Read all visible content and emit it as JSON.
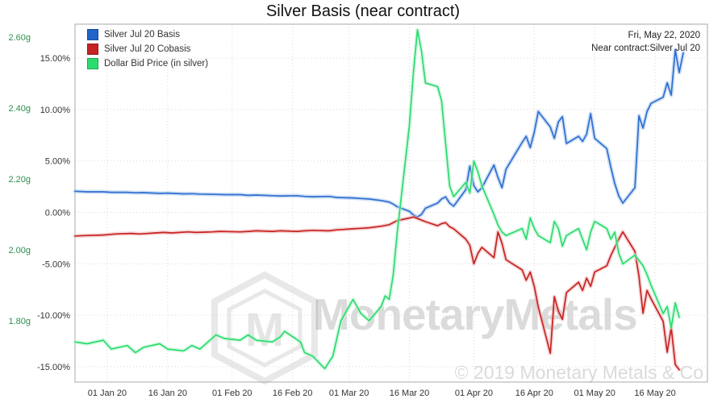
{
  "title": "Silver Basis (near contract)",
  "header": {
    "date_label": "Fri, May 22, 2020",
    "contract_label": "Near contract:Silver Jul 20"
  },
  "legend": [
    {
      "label": "Silver Jul 20 Basis",
      "color": "#2163c8"
    },
    {
      "label": "Silver Jul 20 Cobasis",
      "color": "#c62323"
    },
    {
      "label": "Dollar Bid Price (in silver)",
      "color": "#2bdc6e"
    }
  ],
  "watermark": {
    "brand": "MonetaryMetals",
    "logo_letter": "M",
    "copyright": "© 2019 Monetary Metals & Co"
  },
  "chart_data": {
    "type": "line",
    "title": "Silver Basis (near contract)",
    "x_domain": [
      "2019-12-24",
      "2020-05-29"
    ],
    "x_ticks": [
      {
        "date": "2020-01-01",
        "label": "01 Jan 20"
      },
      {
        "date": "2020-01-16",
        "label": "16 Jan 20"
      },
      {
        "date": "2020-02-01",
        "label": "01 Feb 20"
      },
      {
        "date": "2020-02-16",
        "label": "16 Feb 20"
      },
      {
        "date": "2020-03-01",
        "label": "01 Mar 20"
      },
      {
        "date": "2020-03-16",
        "label": "16 Mar 20"
      },
      {
        "date": "2020-04-01",
        "label": "01 Apr 20"
      },
      {
        "date": "2020-04-16",
        "label": "16 Apr 20"
      },
      {
        "date": "2020-05-01",
        "label": "01 May 20"
      },
      {
        "date": "2020-05-16",
        "label": "16 May 20"
      }
    ],
    "axes": {
      "percent": {
        "ticks": [
          15,
          10,
          5,
          0,
          -5,
          -10,
          -15
        ],
        "range": [
          -16.5,
          18.3
        ],
        "unit": "%"
      },
      "grams": {
        "ticks": [
          2.6,
          2.4,
          2.2,
          2.0,
          1.8
        ],
        "range": [
          1.627,
          2.636
        ],
        "unit": "g"
      }
    },
    "grid": true,
    "legend_position": "top-left",
    "series": [
      {
        "id": "basis",
        "name": "Silver Jul 20 Basis",
        "axis": "percent",
        "color": "#2e6fd0",
        "glow": "#a9c7ef",
        "points": [
          [
            "2019-12-24",
            2.05
          ],
          [
            "2019-12-27",
            2.0
          ],
          [
            "2019-12-31",
            2.0
          ],
          [
            "2020-01-02",
            1.95
          ],
          [
            "2020-01-06",
            1.95
          ],
          [
            "2020-01-08",
            1.9
          ],
          [
            "2020-01-10",
            1.92
          ],
          [
            "2020-01-14",
            1.85
          ],
          [
            "2020-01-16",
            1.87
          ],
          [
            "2020-01-20",
            1.8
          ],
          [
            "2020-01-22",
            1.82
          ],
          [
            "2020-01-24",
            1.78
          ],
          [
            "2020-01-28",
            1.75
          ],
          [
            "2020-01-30",
            1.72
          ],
          [
            "2020-02-03",
            1.72
          ],
          [
            "2020-02-05",
            1.65
          ],
          [
            "2020-02-07",
            1.68
          ],
          [
            "2020-02-11",
            1.62
          ],
          [
            "2020-02-13",
            1.6
          ],
          [
            "2020-02-17",
            1.62
          ],
          [
            "2020-02-19",
            1.55
          ],
          [
            "2020-02-21",
            1.52
          ],
          [
            "2020-02-25",
            1.55
          ],
          [
            "2020-02-27",
            1.45
          ],
          [
            "2020-03-02",
            1.4
          ],
          [
            "2020-03-04",
            1.35
          ],
          [
            "2020-03-06",
            1.3
          ],
          [
            "2020-03-09",
            1.15
          ],
          [
            "2020-03-11",
            1.0
          ],
          [
            "2020-03-12",
            0.8
          ],
          [
            "2020-03-13",
            0.55
          ],
          [
            "2020-03-16",
            0.1
          ],
          [
            "2020-03-17",
            -0.25
          ],
          [
            "2020-03-18",
            -0.45
          ],
          [
            "2020-03-19",
            -0.2
          ],
          [
            "2020-03-20",
            0.4
          ],
          [
            "2020-03-23",
            0.9
          ],
          [
            "2020-03-24",
            1.3
          ],
          [
            "2020-03-25",
            1.5
          ],
          [
            "2020-03-26",
            0.9
          ],
          [
            "2020-03-27",
            0.6
          ],
          [
            "2020-03-30",
            2.2
          ],
          [
            "2020-03-31",
            4.5
          ],
          [
            "2020-04-01",
            2.6
          ],
          [
            "2020-04-02",
            2.0
          ],
          [
            "2020-04-03",
            2.4
          ],
          [
            "2020-04-06",
            4.6
          ],
          [
            "2020-04-07",
            3.4
          ],
          [
            "2020-04-08",
            2.4
          ],
          [
            "2020-04-09",
            4.2
          ],
          [
            "2020-04-13",
            6.8
          ],
          [
            "2020-04-14",
            7.4
          ],
          [
            "2020-04-15",
            6.3
          ],
          [
            "2020-04-16",
            7.8
          ],
          [
            "2020-04-17",
            9.8
          ],
          [
            "2020-04-20",
            8.3
          ],
          [
            "2020-04-21",
            7.2
          ],
          [
            "2020-04-22",
            8.8
          ],
          [
            "2020-04-23",
            9.3
          ],
          [
            "2020-04-24",
            6.7
          ],
          [
            "2020-04-27",
            7.4
          ],
          [
            "2020-04-28",
            6.9
          ],
          [
            "2020-04-29",
            7.6
          ],
          [
            "2020-04-30",
            9.6
          ],
          [
            "2020-05-01",
            7.2
          ],
          [
            "2020-05-04",
            6.2
          ],
          [
            "2020-05-05",
            4.4
          ],
          [
            "2020-05-06",
            2.8
          ],
          [
            "2020-05-07",
            1.6
          ],
          [
            "2020-05-08",
            0.9
          ],
          [
            "2020-05-11",
            2.4
          ],
          [
            "2020-05-12",
            9.4
          ],
          [
            "2020-05-13",
            8.2
          ],
          [
            "2020-05-14",
            9.8
          ],
          [
            "2020-05-15",
            10.6
          ],
          [
            "2020-05-18",
            11.2
          ],
          [
            "2020-05-19",
            12.6
          ],
          [
            "2020-05-20",
            11.4
          ],
          [
            "2020-05-21",
            15.8
          ],
          [
            "2020-05-22",
            13.6
          ],
          [
            "2020-05-23",
            15.5
          ]
        ]
      },
      {
        "id": "cobasis",
        "name": "Silver Jul 20 Cobasis",
        "axis": "percent",
        "color": "#c62323",
        "glow": "#f0b3b3",
        "points": [
          [
            "2019-12-24",
            -2.3
          ],
          [
            "2019-12-27",
            -2.25
          ],
          [
            "2019-12-31",
            -2.2
          ],
          [
            "2020-01-03",
            -2.1
          ],
          [
            "2020-01-07",
            -2.05
          ],
          [
            "2020-01-09",
            -2.1
          ],
          [
            "2020-01-13",
            -2.0
          ],
          [
            "2020-01-15",
            -1.95
          ],
          [
            "2020-01-17",
            -2.0
          ],
          [
            "2020-01-21",
            -1.9
          ],
          [
            "2020-01-23",
            -1.95
          ],
          [
            "2020-01-27",
            -1.9
          ],
          [
            "2020-01-29",
            -1.85
          ],
          [
            "2020-02-03",
            -1.9
          ],
          [
            "2020-02-05",
            -1.85
          ],
          [
            "2020-02-07",
            -1.8
          ],
          [
            "2020-02-11",
            -1.85
          ],
          [
            "2020-02-13",
            -1.8
          ],
          [
            "2020-02-17",
            -1.85
          ],
          [
            "2020-02-19",
            -1.8
          ],
          [
            "2020-02-21",
            -1.75
          ],
          [
            "2020-02-25",
            -1.8
          ],
          [
            "2020-02-27",
            -1.7
          ],
          [
            "2020-03-02",
            -1.6
          ],
          [
            "2020-03-04",
            -1.55
          ],
          [
            "2020-03-06",
            -1.5
          ],
          [
            "2020-03-09",
            -1.35
          ],
          [
            "2020-03-11",
            -1.2
          ],
          [
            "2020-03-12",
            -1.0
          ],
          [
            "2020-03-13",
            -0.8
          ],
          [
            "2020-03-16",
            -0.55
          ],
          [
            "2020-03-17",
            -0.45
          ],
          [
            "2020-03-18",
            -0.6
          ],
          [
            "2020-03-19",
            -0.75
          ],
          [
            "2020-03-20",
            -0.9
          ],
          [
            "2020-03-23",
            -1.3
          ],
          [
            "2020-03-24",
            -1.1
          ],
          [
            "2020-03-25",
            -1.0
          ],
          [
            "2020-03-26",
            -1.4
          ],
          [
            "2020-03-27",
            -1.6
          ],
          [
            "2020-03-30",
            -2.6
          ],
          [
            "2020-03-31",
            -3.2
          ],
          [
            "2020-04-01",
            -5.0
          ],
          [
            "2020-04-02",
            -4.0
          ],
          [
            "2020-04-03",
            -3.4
          ],
          [
            "2020-04-06",
            -4.4
          ],
          [
            "2020-04-07",
            -1.9
          ],
          [
            "2020-04-08",
            -3.0
          ],
          [
            "2020-04-09",
            -4.6
          ],
          [
            "2020-04-13",
            -5.6
          ],
          [
            "2020-04-14",
            -6.6
          ],
          [
            "2020-04-15",
            -5.8
          ],
          [
            "2020-04-16",
            -7.2
          ],
          [
            "2020-04-17",
            -9.2
          ],
          [
            "2020-04-20",
            -13.7
          ],
          [
            "2020-04-21",
            -8.2
          ],
          [
            "2020-04-22",
            -9.6
          ],
          [
            "2020-04-23",
            -10.4
          ],
          [
            "2020-04-24",
            -7.8
          ],
          [
            "2020-04-27",
            -6.8
          ],
          [
            "2020-04-28",
            -7.6
          ],
          [
            "2020-04-29",
            -6.4
          ],
          [
            "2020-04-30",
            -7.2
          ],
          [
            "2020-05-01",
            -5.8
          ],
          [
            "2020-05-04",
            -5.2
          ],
          [
            "2020-05-05",
            -4.2
          ],
          [
            "2020-05-06",
            -3.4
          ],
          [
            "2020-05-07",
            -2.6
          ],
          [
            "2020-05-08",
            -1.9
          ],
          [
            "2020-05-11",
            -3.8
          ],
          [
            "2020-05-12",
            -6.2
          ],
          [
            "2020-05-13",
            -9.8
          ],
          [
            "2020-05-14",
            -7.6
          ],
          [
            "2020-05-15",
            -8.4
          ],
          [
            "2020-05-18",
            -10.6
          ],
          [
            "2020-05-19",
            -13.6
          ],
          [
            "2020-05-20",
            -11.2
          ],
          [
            "2020-05-21",
            -14.8
          ],
          [
            "2020-05-22",
            -15.3
          ]
        ]
      },
      {
        "id": "price",
        "name": "Dollar Bid Price (in silver)",
        "axis": "grams",
        "color": "#2bdc6e",
        "glow": "#b9f2cf",
        "points": [
          [
            "2019-12-24",
            1.74
          ],
          [
            "2019-12-27",
            1.735
          ],
          [
            "2019-12-31",
            1.745
          ],
          [
            "2020-01-02",
            1.72
          ],
          [
            "2020-01-06",
            1.73
          ],
          [
            "2020-01-08",
            1.71
          ],
          [
            "2020-01-10",
            1.725
          ],
          [
            "2020-01-14",
            1.735
          ],
          [
            "2020-01-16",
            1.72
          ],
          [
            "2020-01-20",
            1.715
          ],
          [
            "2020-01-22",
            1.73
          ],
          [
            "2020-01-24",
            1.72
          ],
          [
            "2020-01-28",
            1.76
          ],
          [
            "2020-01-30",
            1.75
          ],
          [
            "2020-02-03",
            1.745
          ],
          [
            "2020-02-05",
            1.76
          ],
          [
            "2020-02-07",
            1.745
          ],
          [
            "2020-02-11",
            1.74
          ],
          [
            "2020-02-13",
            1.755
          ],
          [
            "2020-02-14",
            1.77
          ],
          [
            "2020-02-18",
            1.74
          ],
          [
            "2020-02-19",
            1.71
          ],
          [
            "2020-02-21",
            1.7
          ],
          [
            "2020-02-24",
            1.665
          ],
          [
            "2020-02-26",
            1.7
          ],
          [
            "2020-02-28",
            1.8
          ],
          [
            "2020-03-02",
            1.86
          ],
          [
            "2020-03-04",
            1.82
          ],
          [
            "2020-03-06",
            1.8
          ],
          [
            "2020-03-09",
            1.84
          ],
          [
            "2020-03-10",
            1.87
          ],
          [
            "2020-03-11",
            1.86
          ],
          [
            "2020-03-12",
            1.93
          ],
          [
            "2020-03-13",
            2.05
          ],
          [
            "2020-03-16",
            2.35
          ],
          [
            "2020-03-17",
            2.5
          ],
          [
            "2020-03-18",
            2.62
          ],
          [
            "2020-03-19",
            2.56
          ],
          [
            "2020-03-20",
            2.47
          ],
          [
            "2020-03-23",
            2.46
          ],
          [
            "2020-03-24",
            2.42
          ],
          [
            "2020-03-25",
            2.3
          ],
          [
            "2020-03-26",
            2.18
          ],
          [
            "2020-03-27",
            2.15
          ],
          [
            "2020-03-30",
            2.19
          ],
          [
            "2020-03-31",
            2.16
          ],
          [
            "2020-04-01",
            2.25
          ],
          [
            "2020-04-02",
            2.22
          ],
          [
            "2020-04-03",
            2.18
          ],
          [
            "2020-04-06",
            2.1
          ],
          [
            "2020-04-07",
            2.07
          ],
          [
            "2020-04-08",
            2.05
          ],
          [
            "2020-04-09",
            2.04
          ],
          [
            "2020-04-13",
            2.06
          ],
          [
            "2020-04-14",
            2.03
          ],
          [
            "2020-04-15",
            2.09
          ],
          [
            "2020-04-16",
            2.06
          ],
          [
            "2020-04-17",
            2.04
          ],
          [
            "2020-04-20",
            2.02
          ],
          [
            "2020-04-21",
            2.08
          ],
          [
            "2020-04-22",
            2.06
          ],
          [
            "2020-04-23",
            2.01
          ],
          [
            "2020-04-24",
            2.04
          ],
          [
            "2020-04-27",
            2.06
          ],
          [
            "2020-04-28",
            2.03
          ],
          [
            "2020-04-29",
            2.0
          ],
          [
            "2020-04-30",
            2.05
          ],
          [
            "2020-05-01",
            2.08
          ],
          [
            "2020-05-04",
            2.06
          ],
          [
            "2020-05-05",
            2.03
          ],
          [
            "2020-05-06",
            2.05
          ],
          [
            "2020-05-07",
            1.99
          ],
          [
            "2020-05-08",
            1.96
          ],
          [
            "2020-05-11",
            1.985
          ],
          [
            "2020-05-12",
            1.97
          ],
          [
            "2020-05-13",
            1.955
          ],
          [
            "2020-05-14",
            1.93
          ],
          [
            "2020-05-15",
            1.9
          ],
          [
            "2020-05-18",
            1.82
          ],
          [
            "2020-05-19",
            1.84
          ],
          [
            "2020-05-20",
            1.78
          ],
          [
            "2020-05-21",
            1.85
          ],
          [
            "2020-05-22",
            1.81
          ]
        ]
      }
    ]
  }
}
